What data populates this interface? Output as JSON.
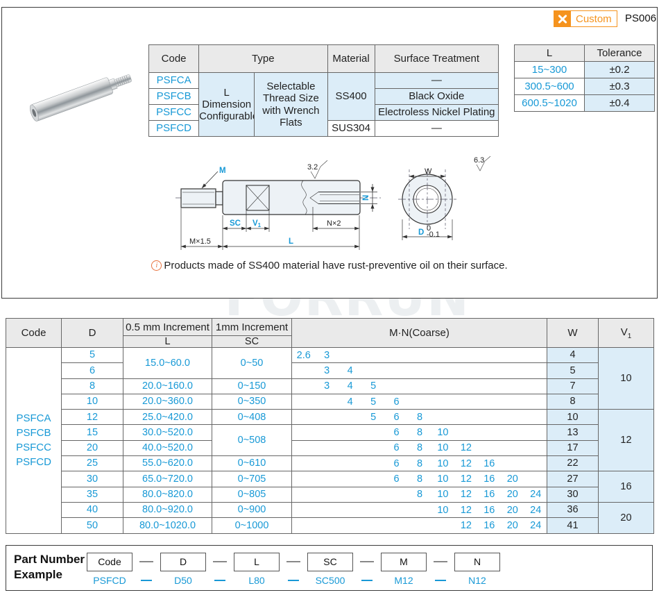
{
  "colors": {
    "accent_blue": "#1899D6",
    "accent_orange": "#F5931E",
    "cell_blue": "#DCEDF8",
    "header_gray": "#EAEAEA"
  },
  "header": {
    "badge_label": "Custom",
    "page_code": "PS006"
  },
  "spec_table": {
    "headers": {
      "code": "Code",
      "type": "Type",
      "material": "Material",
      "surface": "Surface Treatment"
    },
    "codes": [
      "PSFCA",
      "PSFCB",
      "PSFCC",
      "PSFCD"
    ],
    "type_a": "L Dimension Configurable",
    "type_b": "Selectable Thread Size with Wrench Flats",
    "material_ss400": "SS400",
    "material_sus304": "SUS304",
    "surfaces": [
      "—",
      "Black Oxide",
      "Electroless Nickel Plating",
      "—"
    ]
  },
  "tolerance_table": {
    "headers": {
      "l": "L",
      "tolerance": "Tolerance"
    },
    "rows": [
      {
        "l": "15~300",
        "tol": "±0.2"
      },
      {
        "l": "300.5~600",
        "tol": "±0.3"
      },
      {
        "l": "600.5~1020",
        "tol": "±0.4"
      }
    ]
  },
  "drawing": {
    "labels": {
      "m": "M",
      "m_thread": "M×1.5",
      "sc": "SC",
      "v_base": "V",
      "v_sub": "1",
      "l": "L",
      "n": "N",
      "n_depth": "N×2",
      "w": "W",
      "d": "D",
      "d_tol_upper": "0",
      "d_tol_lower": "-0.1",
      "roughness_side": "3.2",
      "roughness_end": "6.3"
    }
  },
  "note": {
    "text": "Products made of SS400 material have rust-preventive oil on their surface."
  },
  "watermark": "FORRUN",
  "main_table": {
    "headers": {
      "code": "Code",
      "d": "D",
      "inc05": "0.5 mm Increment",
      "inc1": "1mm Increment",
      "l": "L",
      "sc": "SC",
      "mn": "M·N(Coarse)",
      "w": "W",
      "v1_base": "V",
      "v1_sub": "1"
    },
    "code_lines": [
      "PSFCA",
      "PSFCB",
      "PSFCC",
      "PSFCD"
    ],
    "rows": [
      {
        "d": "5",
        "l": "15.0~60.0",
        "sc": "0~50",
        "mn": [
          {
            "v": "2.6",
            "s": 0
          },
          {
            "v": "3",
            "s": 1
          }
        ],
        "w": "4",
        "v1": "10"
      },
      {
        "d": "6",
        "mn": [
          {
            "v": "3",
            "s": 1
          },
          {
            "v": "4",
            "s": 2
          }
        ],
        "w": "5"
      },
      {
        "d": "8",
        "l": "20.0~160.0",
        "sc": "0~150",
        "mn": [
          {
            "v": "3",
            "s": 1
          },
          {
            "v": "4",
            "s": 2
          },
          {
            "v": "5",
            "s": 3
          }
        ],
        "w": "7"
      },
      {
        "d": "10",
        "l": "20.0~360.0",
        "sc": "0~350",
        "mn": [
          {
            "v": "4",
            "s": 2
          },
          {
            "v": "5",
            "s": 3
          },
          {
            "v": "6",
            "s": 4
          }
        ],
        "w": "8"
      },
      {
        "d": "12",
        "l": "25.0~420.0",
        "sc": "0~408",
        "mn": [
          {
            "v": "5",
            "s": 3
          },
          {
            "v": "6",
            "s": 4
          },
          {
            "v": "8",
            "s": 5
          }
        ],
        "w": "10",
        "v1": "12"
      },
      {
        "d": "15",
        "l": "30.0~520.0",
        "sc": "0~508",
        "mn": [
          {
            "v": "6",
            "s": 4
          },
          {
            "v": "8",
            "s": 5
          },
          {
            "v": "10",
            "s": 6
          }
        ],
        "w": "13"
      },
      {
        "d": "20",
        "l": "40.0~520.0",
        "mn": [
          {
            "v": "6",
            "s": 4
          },
          {
            "v": "8",
            "s": 5
          },
          {
            "v": "10",
            "s": 6
          },
          {
            "v": "12",
            "s": 7
          }
        ],
        "w": "17"
      },
      {
        "d": "25",
        "l": "55.0~620.0",
        "sc": "0~610",
        "mn": [
          {
            "v": "6",
            "s": 4
          },
          {
            "v": "8",
            "s": 5
          },
          {
            "v": "10",
            "s": 6
          },
          {
            "v": "12",
            "s": 7
          },
          {
            "v": "16",
            "s": 8
          }
        ],
        "w": "22"
      },
      {
        "d": "30",
        "l": "65.0~720.0",
        "sc": "0~705",
        "mn": [
          {
            "v": "6",
            "s": 4
          },
          {
            "v": "8",
            "s": 5
          },
          {
            "v": "10",
            "s": 6
          },
          {
            "v": "12",
            "s": 7
          },
          {
            "v": "16",
            "s": 8
          },
          {
            "v": "20",
            "s": 9
          }
        ],
        "w": "27",
        "v1": "16"
      },
      {
        "d": "35",
        "l": "80.0~820.0",
        "sc": "0~805",
        "mn": [
          {
            "v": "8",
            "s": 5
          },
          {
            "v": "10",
            "s": 6
          },
          {
            "v": "12",
            "s": 7
          },
          {
            "v": "16",
            "s": 8
          },
          {
            "v": "20",
            "s": 9
          },
          {
            "v": "24",
            "s": 10
          }
        ],
        "w": "30"
      },
      {
        "d": "40",
        "l": "80.0~920.0",
        "sc": "0~900",
        "mn": [
          {
            "v": "10",
            "s": 6
          },
          {
            "v": "12",
            "s": 7
          },
          {
            "v": "16",
            "s": 8
          },
          {
            "v": "20",
            "s": 9
          },
          {
            "v": "24",
            "s": 10
          }
        ],
        "w": "36",
        "v1": "20"
      },
      {
        "d": "50",
        "l": "80.0~1020.0",
        "sc": "0~1000",
        "mn": [
          {
            "v": "12",
            "s": 7
          },
          {
            "v": "16",
            "s": 8
          },
          {
            "v": "20",
            "s": 9
          },
          {
            "v": "24",
            "s": 10
          }
        ],
        "w": "41"
      }
    ]
  },
  "part_number": {
    "label_line1": "Part Number",
    "label_line2": "Example",
    "fields": [
      "Code",
      "D",
      "L",
      "SC",
      "M",
      "N"
    ],
    "example": [
      "PSFCD",
      "D50",
      "L80",
      "SC500",
      "M12",
      "N12"
    ]
  }
}
